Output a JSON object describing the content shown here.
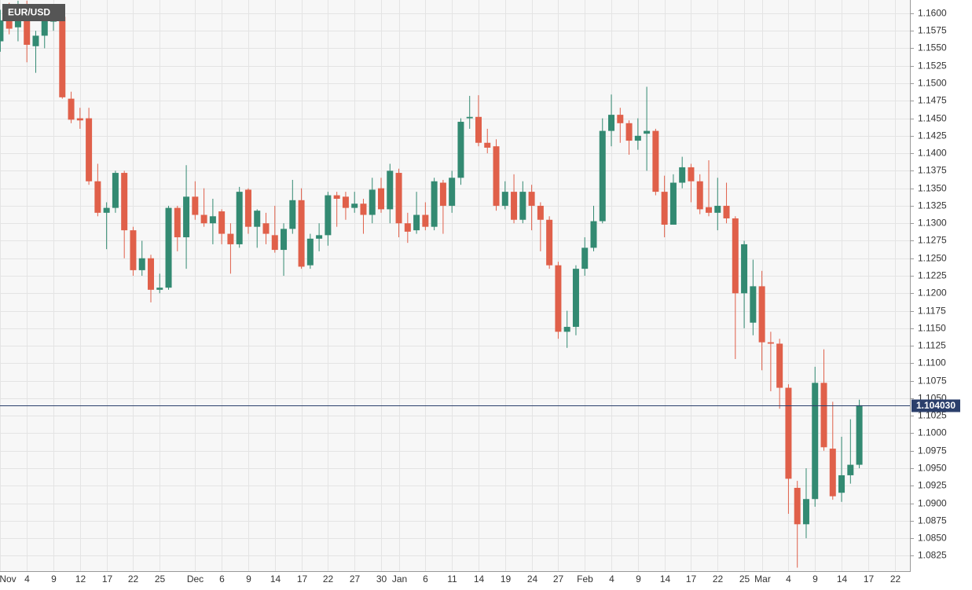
{
  "chart_data": {
    "type": "candlestick",
    "title": "EUR/USD",
    "up_color": "#338a72",
    "down_color": "#e0604a",
    "categories": [
      "Nov",
      null,
      null,
      "4",
      null,
      null,
      "9",
      null,
      null,
      "12",
      null,
      null,
      "17",
      null,
      null,
      "22",
      null,
      null,
      "25",
      null,
      null,
      null,
      "Dec",
      null,
      null,
      "6",
      null,
      null,
      "9",
      null,
      null,
      "14",
      null,
      null,
      "17",
      null,
      null,
      "22",
      null,
      null,
      "27",
      null,
      null,
      "30",
      null,
      "Jan",
      null,
      null,
      "6",
      null,
      null,
      "11",
      null,
      null,
      "14",
      null,
      null,
      "19",
      null,
      null,
      "24",
      null,
      null,
      "27",
      null,
      null,
      "Feb",
      null,
      null,
      "4",
      null,
      null,
      "9",
      null,
      null,
      "14",
      null,
      null,
      "17",
      null,
      null,
      "22",
      null,
      null,
      "25",
      null,
      "Mar",
      null,
      null,
      "4",
      null,
      null,
      "9",
      null,
      null,
      "14",
      null,
      null,
      "17",
      null,
      null,
      "22"
    ],
    "open": [
      1.156,
      1.1608,
      1.158,
      1.161,
      1.1553,
      1.1568,
      1.1588,
      1.1595,
      1.1478,
      1.145,
      1.145,
      1.136,
      1.1315,
      1.1322,
      1.1372,
      1.129,
      1.1233,
      1.125,
      1.1205,
      1.1208,
      1.1322,
      1.128,
      1.1338,
      1.1312,
      1.13,
      1.1317,
      1.1285,
      1.127,
      1.1348,
      1.1295,
      1.13,
      1.1283,
      1.1262,
      1.1292,
      1.1333,
      1.124,
      1.1278,
      1.1283,
      1.134,
      1.1338,
      1.1322,
      1.1328,
      1.1312,
      1.135,
      1.132,
      1.1372,
      1.13,
      1.129,
      1.1312,
      1.1295,
      1.1358,
      1.1325,
      1.1365,
      1.145,
      1.1452,
      1.1415,
      1.141,
      1.1325,
      1.1345,
      1.1305,
      1.1345,
      1.1325,
      1.1305,
      1.124,
      1.1145,
      1.1152,
      1.1235,
      1.1265,
      1.1303,
      1.1432,
      1.1455,
      1.1443,
      1.1418,
      1.1428,
      1.1432,
      1.1345,
      1.1298,
      1.1358,
      1.138,
      1.136,
      1.1323,
      1.1315,
      1.1325,
      1.1307,
      1.12,
      1.1158,
      1.121,
      1.113,
      1.1128,
      1.1065,
      1.0922,
      1.087,
      1.0906,
      1.1072,
      1.0978,
      1.0915,
      1.094,
      1.0955,
      null,
      null,
      null,
      null
    ],
    "high": [
      1.1605,
      1.1615,
      1.1618,
      1.1618,
      1.1575,
      1.1612,
      1.161,
      1.16,
      1.1488,
      1.1465,
      1.1465,
      1.1385,
      1.133,
      1.1375,
      1.1375,
      1.1295,
      1.1275,
      1.1255,
      1.1228,
      1.1325,
      1.1325,
      1.1383,
      1.136,
      1.135,
      1.1335,
      1.132,
      1.13,
      1.1352,
      1.135,
      1.132,
      1.1315,
      1.1325,
      1.13,
      1.1362,
      1.135,
      1.1285,
      1.13,
      1.1345,
      1.1345,
      1.1345,
      1.1345,
      1.1335,
      1.1365,
      1.1365,
      1.1385,
      1.1378,
      1.1315,
      1.1345,
      1.133,
      1.1365,
      1.1362,
      1.1375,
      1.145,
      1.1482,
      1.1483,
      1.1435,
      1.142,
      1.136,
      1.137,
      1.136,
      1.1355,
      1.133,
      1.131,
      1.1245,
      1.1175,
      1.124,
      1.128,
      1.1325,
      1.145,
      1.1484,
      1.1465,
      1.1447,
      1.145,
      1.1495,
      1.1435,
      1.1368,
      1.137,
      1.1395,
      1.1385,
      1.137,
      1.139,
      1.1365,
      1.1358,
      1.131,
      1.1275,
      1.1248,
      1.1232,
      1.1145,
      1.1135,
      1.107,
      1.0932,
      1.095,
      1.1095,
      1.112,
      1.1045,
      1.0995,
      1.102,
      1.1048,
      null,
      null,
      null,
      null
    ],
    "low": [
      1.1545,
      1.157,
      1.156,
      1.153,
      1.1515,
      1.155,
      1.1575,
      1.1478,
      1.1443,
      1.1435,
      1.1355,
      1.131,
      1.1263,
      1.1315,
      1.125,
      1.1225,
      1.1225,
      1.1187,
      1.12,
      1.1205,
      1.126,
      1.1235,
      1.1305,
      1.1295,
      1.127,
      1.127,
      1.1228,
      1.1265,
      1.1285,
      1.1265,
      1.127,
      1.1258,
      1.1225,
      1.1285,
      1.1235,
      1.1235,
      1.126,
      1.1268,
      1.1295,
      1.1305,
      1.1315,
      1.1285,
      1.13,
      1.1315,
      1.13,
      1.128,
      1.1272,
      1.1285,
      1.129,
      1.129,
      1.1285,
      1.1315,
      1.1355,
      1.1435,
      1.141,
      1.14,
      1.1318,
      1.132,
      1.13,
      1.13,
      1.129,
      1.126,
      1.1235,
      1.1135,
      1.1122,
      1.114,
      1.1225,
      1.126,
      1.13,
      1.141,
      1.1415,
      1.1398,
      1.1405,
      1.1375,
      1.134,
      1.128,
      1.1298,
      1.135,
      1.133,
      1.1313,
      1.131,
      1.129,
      1.13,
      1.1106,
      1.115,
      1.114,
      1.109,
      1.106,
      1.1035,
      1.0885,
      1.0808,
      1.085,
      1.0895,
      1.0975,
      1.0905,
      1.0902,
      1.0928,
      1.095,
      null,
      null,
      null,
      null
    ],
    "close": [
      1.159,
      1.1578,
      1.161,
      1.1555,
      1.1568,
      1.159,
      1.1595,
      1.148,
      1.1448,
      1.1447,
      1.136,
      1.1315,
      1.1322,
      1.1372,
      1.129,
      1.1233,
      1.125,
      1.1205,
      1.1208,
      1.1322,
      1.128,
      1.1338,
      1.1312,
      1.13,
      1.131,
      1.1285,
      1.127,
      1.1345,
      1.1295,
      1.1318,
      1.1285,
      1.1262,
      1.1292,
      1.1333,
      1.1238,
      1.1278,
      1.1283,
      1.134,
      1.1335,
      1.1322,
      1.1328,
      1.1312,
      1.1348,
      1.132,
      1.1375,
      1.13,
      1.1288,
      1.1312,
      1.1295,
      1.136,
      1.1325,
      1.1365,
      1.1445,
      1.1452,
      1.1415,
      1.1408,
      1.1325,
      1.1345,
      1.1305,
      1.1345,
      1.1325,
      1.1305,
      1.124,
      1.1145,
      1.1152,
      1.1235,
      1.1265,
      1.1303,
      1.1432,
      1.1455,
      1.1443,
      1.1418,
      1.1425,
      1.1432,
      1.1345,
      1.1298,
      1.1358,
      1.138,
      1.136,
      1.132,
      1.1315,
      1.1325,
      1.1307,
      1.12,
      1.127,
      1.121,
      1.113,
      1.1128,
      1.1065,
      1.0935,
      1.087,
      1.0906,
      1.1072,
      1.098,
      1.091,
      1.094,
      1.0955,
      1.104,
      null,
      null,
      null,
      null
    ],
    "last_price": {
      "value": 1.10403,
      "label": "1.104030",
      "color": "#2b3f6b"
    },
    "ylim": [
      1.0803,
      1.1619
    ],
    "yticks": [
      {
        "value": 1.0825,
        "label": "1.0825"
      },
      {
        "value": 1.085,
        "label": "1.0850"
      },
      {
        "value": 1.0875,
        "label": "1.0875"
      },
      {
        "value": 1.09,
        "label": "1.0900"
      },
      {
        "value": 1.0925,
        "label": "1.0925"
      },
      {
        "value": 1.095,
        "label": "1.0950"
      },
      {
        "value": 1.0975,
        "label": "1.0975"
      },
      {
        "value": 1.1,
        "label": "1.1000"
      },
      {
        "value": 1.1025,
        "label": "1.1025"
      },
      {
        "value": 1.105,
        "label": "1.1050"
      },
      {
        "value": 1.1075,
        "label": "1.1075"
      },
      {
        "value": 1.11,
        "label": "1.1100"
      },
      {
        "value": 1.1125,
        "label": "1.1125"
      },
      {
        "value": 1.115,
        "label": "1.1150"
      },
      {
        "value": 1.1175,
        "label": "1.1175"
      },
      {
        "value": 1.12,
        "label": "1.1200"
      },
      {
        "value": 1.1225,
        "label": "1.1225"
      },
      {
        "value": 1.125,
        "label": "1.1250"
      },
      {
        "value": 1.1275,
        "label": "1.1275"
      },
      {
        "value": 1.13,
        "label": "1.1300"
      },
      {
        "value": 1.1325,
        "label": "1.1325"
      },
      {
        "value": 1.135,
        "label": "1.1350"
      },
      {
        "value": 1.1375,
        "label": "1.1375"
      },
      {
        "value": 1.14,
        "label": "1.1400"
      },
      {
        "value": 1.1425,
        "label": "1.1425"
      },
      {
        "value": 1.145,
        "label": "1.1450"
      },
      {
        "value": 1.1475,
        "label": "1.1475"
      },
      {
        "value": 1.15,
        "label": "1.1500"
      },
      {
        "value": 1.1525,
        "label": "1.1525"
      },
      {
        "value": 1.155,
        "label": "1.1550"
      },
      {
        "value": 1.1575,
        "label": "1.1575"
      },
      {
        "value": 1.16,
        "label": "1.1600"
      }
    ],
    "grid": true
  }
}
